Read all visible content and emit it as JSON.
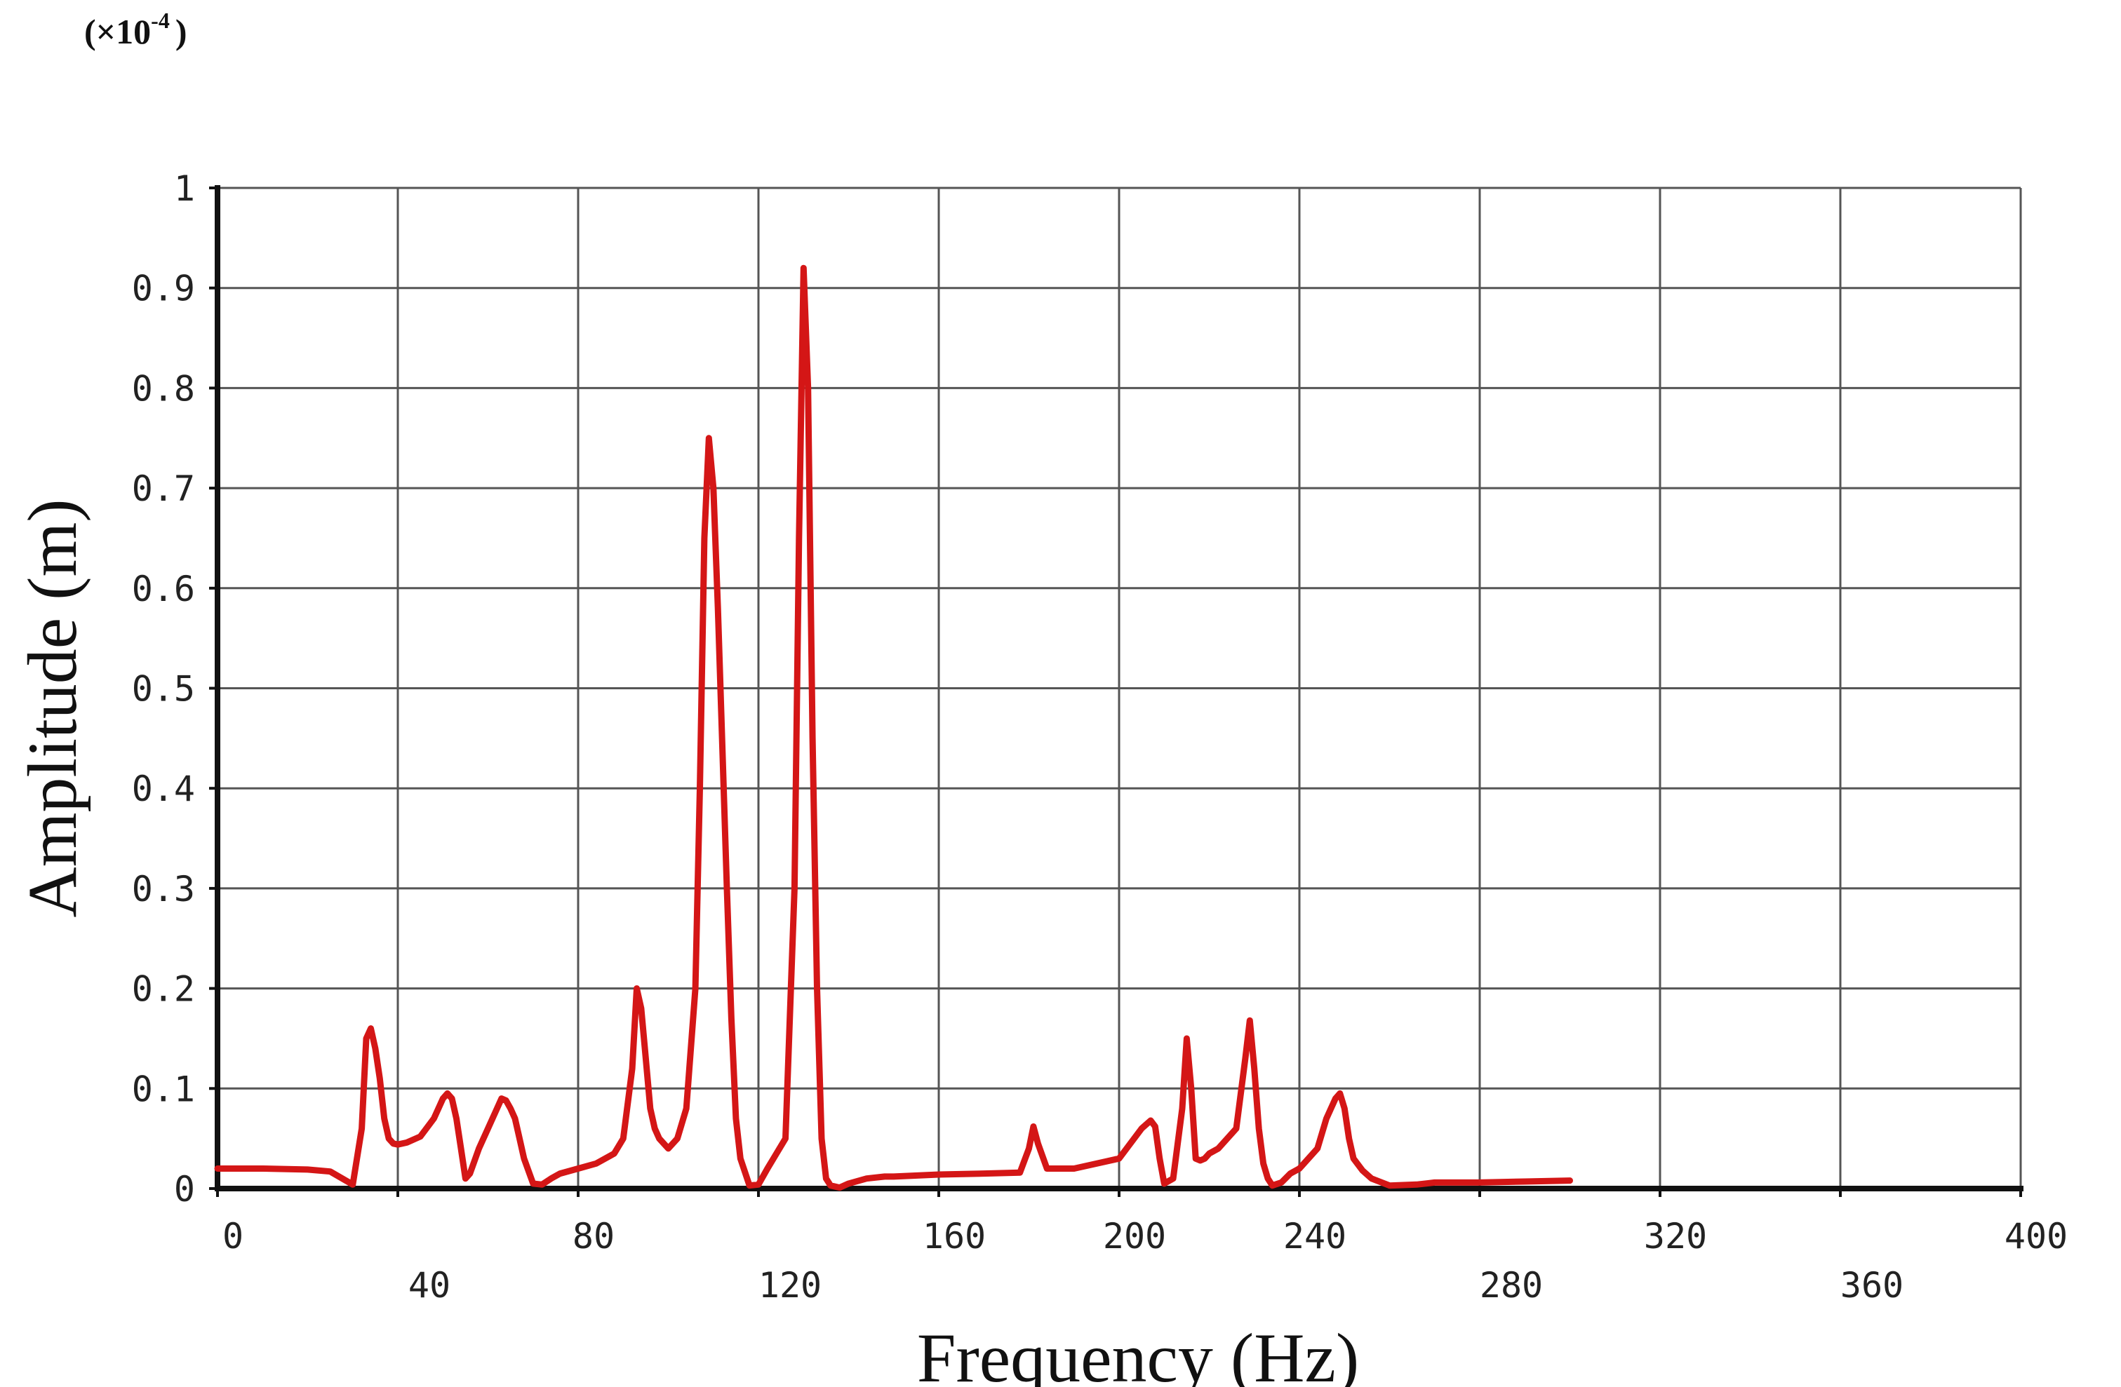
{
  "chart_data": {
    "type": "line",
    "title": "",
    "xlabel": "Frequency (Hz)",
    "ylabel": "Amplitude (m)",
    "y_multiplier": "(×10",
    "y_multiplier_exp": "-4",
    "y_multiplier_close": ")",
    "xlim": [
      0,
      400
    ],
    "ylim": [
      0,
      1
    ],
    "grid": true,
    "legend": "none",
    "x_ticks_upper": [
      "0",
      "80",
      "160",
      "200",
      "240",
      "320",
      "400"
    ],
    "x_ticks_upper_values": [
      0,
      80,
      160,
      200,
      240,
      320,
      400
    ],
    "x_ticks_lower": [
      "40",
      "120",
      "280",
      "360"
    ],
    "x_ticks_lower_values": [
      40,
      120,
      280,
      360
    ],
    "y_ticks": [
      "0",
      "0.1",
      "0.2",
      "0.3",
      "0.4",
      "0.5",
      "0.6",
      "0.7",
      "0.8",
      "0.9",
      "1"
    ],
    "y_tick_values": [
      0,
      0.1,
      0.2,
      0.3,
      0.4,
      0.5,
      0.6,
      0.7,
      0.8,
      0.9,
      1
    ],
    "series": [
      {
        "color": "#d41616",
        "x": [
          0,
          10,
          20,
          25,
          30,
          32,
          33,
          34,
          35,
          36,
          37,
          38,
          39,
          40,
          42,
          45,
          48,
          50,
          51,
          52,
          53,
          54,
          55,
          56,
          58,
          60,
          62,
          63,
          64,
          65,
          66,
          67,
          68,
          70,
          72,
          74,
          76,
          80,
          84,
          88,
          90,
          92,
          93,
          94,
          95,
          96,
          97,
          98,
          100,
          102,
          104,
          106,
          107,
          108,
          109,
          110,
          111,
          112,
          113,
          114,
          115,
          116,
          118,
          120,
          122,
          126,
          128,
          129,
          130,
          131,
          132,
          133,
          134,
          135,
          136,
          138,
          140,
          144,
          148,
          150,
          160,
          170,
          178,
          180,
          181,
          182,
          184,
          186,
          190,
          200,
          205,
          207,
          208,
          209,
          210,
          212,
          214,
          215,
          216,
          217,
          218,
          219,
          220,
          222,
          226,
          228,
          229,
          230,
          231,
          232,
          233,
          234,
          236,
          238,
          240,
          244,
          246,
          248,
          249,
          250,
          251,
          252,
          254,
          256,
          260,
          266,
          270,
          280,
          290,
          300
        ],
        "values": [
          0.02,
          0.02,
          0.019,
          0.017,
          0.004,
          0.06,
          0.15,
          0.16,
          0.14,
          0.11,
          0.07,
          0.05,
          0.045,
          0.044,
          0.046,
          0.052,
          0.07,
          0.09,
          0.095,
          0.09,
          0.07,
          0.04,
          0.01,
          0.015,
          0.04,
          0.06,
          0.08,
          0.09,
          0.088,
          0.08,
          0.07,
          0.05,
          0.03,
          0.005,
          0.004,
          0.01,
          0.015,
          0.02,
          0.025,
          0.035,
          0.05,
          0.12,
          0.2,
          0.18,
          0.13,
          0.08,
          0.06,
          0.05,
          0.04,
          0.05,
          0.08,
          0.2,
          0.4,
          0.65,
          0.75,
          0.7,
          0.58,
          0.44,
          0.3,
          0.17,
          0.07,
          0.03,
          0.003,
          0.004,
          0.02,
          0.05,
          0.3,
          0.65,
          0.92,
          0.8,
          0.45,
          0.2,
          0.05,
          0.01,
          0.003,
          0.001,
          0.005,
          0.01,
          0.012,
          0.012,
          0.014,
          0.015,
          0.016,
          0.04,
          0.062,
          0.045,
          0.02,
          0.02,
          0.02,
          0.03,
          0.06,
          0.068,
          0.062,
          0.03,
          0.005,
          0.01,
          0.08,
          0.15,
          0.1,
          0.03,
          0.028,
          0.03,
          0.035,
          0.04,
          0.06,
          0.13,
          0.168,
          0.12,
          0.06,
          0.025,
          0.01,
          0.003,
          0.006,
          0.015,
          0.02,
          0.04,
          0.07,
          0.09,
          0.095,
          0.08,
          0.05,
          0.03,
          0.018,
          0.01,
          0.003,
          0.004,
          0.006,
          0.006,
          0.007,
          0.008
        ]
      }
    ]
  }
}
